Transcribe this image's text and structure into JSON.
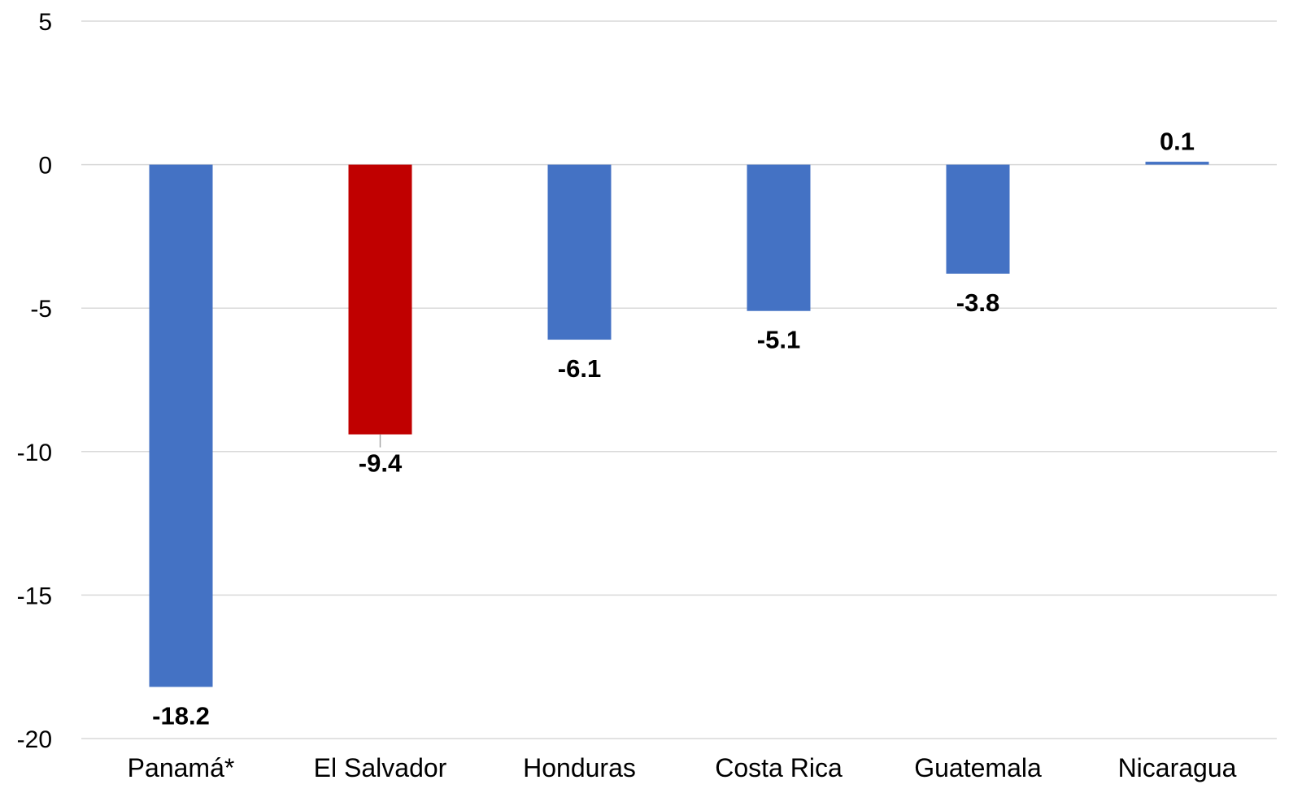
{
  "chart_data": {
    "type": "bar",
    "title": "",
    "xlabel": "",
    "ylabel": "",
    "categories": [
      "Panamá*",
      "El Salvador",
      "Honduras",
      "Costa Rica",
      "Guatemala",
      "Nicaragua"
    ],
    "values": [
      -18.2,
      -9.4,
      -6.1,
      -5.1,
      -3.8,
      0.1
    ],
    "data_labels": [
      "-18.2",
      "-9.4",
      "-6.1",
      "-5.1",
      "-3.8",
      "0.1"
    ],
    "ylim": [
      -20,
      5
    ],
    "yticks": [
      5,
      0,
      -5,
      -10,
      -15,
      -20
    ],
    "ytick_labels": [
      "5",
      "0",
      "-5",
      "-10",
      "-15",
      "-20"
    ],
    "grid": true,
    "legend": "none",
    "colors": {
      "default_bar": "#4472c4",
      "highlight_bar": "#c00000",
      "gridline": "#d9d9d9"
    },
    "highlight_category": "El Salvador"
  }
}
